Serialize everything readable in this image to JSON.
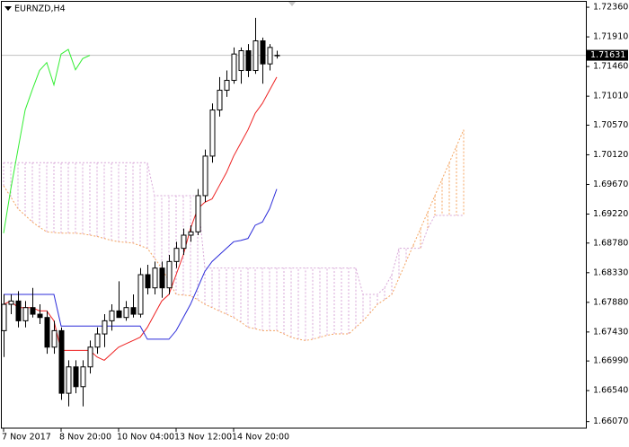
{
  "chart_data": {
    "type": "candlestick",
    "title": "EURNZD,H4",
    "categories": [
      "7 Nov 2017",
      null,
      null,
      null,
      null,
      null,
      null,
      null,
      "8 Nov 20:00",
      null,
      null,
      null,
      null,
      null,
      null,
      null,
      "10 Nov 04:00",
      null,
      null,
      null,
      null,
      null,
      null,
      null,
      "13 Nov 12:00",
      null,
      null,
      null,
      null,
      null,
      null,
      null,
      "14 Nov 20:00",
      null,
      null,
      null,
      null,
      null,
      null,
      null,
      null,
      null,
      null,
      null,
      null,
      null,
      null,
      null,
      null,
      null,
      null,
      null,
      null,
      null,
      null,
      null,
      null,
      null,
      null,
      null,
      null,
      null,
      null,
      null,
      null
    ],
    "open": [
      1.6745,
      1.6785,
      1.679,
      1.676,
      1.678,
      1.677,
      1.6765,
      1.672,
      1.6745,
      1.665,
      1.669,
      1.666,
      1.669,
      1.672,
      1.674,
      1.676,
      1.6775,
      1.6765,
      1.678,
      1.677,
      1.683,
      1.681,
      1.684,
      1.681,
      1.685,
      1.687,
      1.689,
      1.6895,
      1.695,
      1.701,
      1.708,
      1.711,
      1.7125,
      1.714,
      1.717,
      1.714,
      1.7185,
      1.715,
      1.7163,
      null,
      null,
      null,
      null,
      null,
      null,
      null,
      null,
      null,
      null,
      null,
      null,
      null,
      null,
      null,
      null,
      null,
      null,
      null,
      null,
      null,
      null,
      null,
      null,
      null,
      null
    ],
    "high": [
      1.68,
      1.68,
      1.6805,
      1.679,
      1.681,
      1.6785,
      1.6775,
      1.676,
      1.675,
      1.67,
      1.67,
      1.67,
      1.673,
      1.675,
      1.677,
      1.6785,
      1.682,
      1.679,
      1.68,
      1.684,
      1.6845,
      1.685,
      1.685,
      1.686,
      1.688,
      1.69,
      1.6905,
      1.696,
      1.702,
      1.709,
      1.713,
      1.714,
      1.7175,
      1.7175,
      1.718,
      1.722,
      1.719,
      1.718,
      1.717,
      null,
      null,
      null,
      null,
      null,
      null,
      null,
      null,
      null,
      null,
      null,
      null,
      null,
      null,
      null,
      null,
      null,
      null,
      null,
      null,
      null,
      null,
      null,
      null,
      null,
      null
    ],
    "low": [
      1.6705,
      1.677,
      1.675,
      1.675,
      1.6765,
      1.6755,
      1.671,
      1.671,
      1.664,
      1.663,
      1.665,
      1.663,
      1.668,
      1.671,
      1.672,
      1.6745,
      1.6765,
      1.676,
      1.6765,
      1.6765,
      1.68,
      1.68,
      1.6795,
      1.68,
      1.684,
      1.686,
      1.688,
      1.689,
      1.694,
      1.7,
      1.707,
      1.71,
      1.712,
      1.712,
      1.713,
      1.7135,
      1.712,
      1.714,
      1.7158,
      null,
      null,
      null,
      null,
      null,
      null,
      null,
      null,
      null,
      null,
      null,
      null,
      null,
      null,
      null,
      null,
      null,
      null,
      null,
      null,
      null,
      null,
      null,
      null,
      null,
      null
    ],
    "close": [
      1.6785,
      1.679,
      1.676,
      1.678,
      1.677,
      1.6765,
      1.672,
      1.6745,
      1.665,
      1.669,
      1.666,
      1.669,
      1.672,
      1.674,
      1.676,
      1.6775,
      1.6765,
      1.678,
      1.677,
      1.683,
      1.681,
      1.684,
      1.681,
      1.685,
      1.687,
      1.689,
      1.6895,
      1.695,
      1.701,
      1.708,
      1.711,
      1.7125,
      1.7165,
      1.717,
      1.714,
      1.7185,
      1.715,
      1.7175,
      1.7163,
      null,
      null,
      null,
      null,
      null,
      null,
      null,
      null,
      null,
      null,
      null,
      null,
      null,
      null,
      null,
      null,
      null,
      null,
      null,
      null,
      null,
      null,
      null,
      null,
      null,
      null
    ],
    "lines": [
      {
        "color": "#ee2222",
        "values": [
          1.6785,
          1.679,
          1.678,
          1.678,
          1.678,
          1.6775,
          1.6775,
          1.676,
          1.6715,
          1.6715,
          1.6715,
          1.6715,
          1.6715,
          1.6705,
          1.67,
          1.671,
          1.672,
          1.6725,
          1.673,
          1.6735,
          1.675,
          1.677,
          1.679,
          1.68,
          1.683,
          1.686,
          1.69,
          1.693,
          1.694,
          1.6945,
          1.6965,
          1.6985,
          1.701,
          1.703,
          1.705,
          1.7075,
          1.709,
          1.711,
          1.713,
          null,
          null,
          null,
          null,
          null,
          null,
          null,
          null,
          null,
          null,
          null,
          null,
          null,
          null,
          null,
          null,
          null,
          null,
          null,
          null,
          null,
          null,
          null,
          null,
          null,
          null
        ]
      },
      {
        "color": "#2b2bd9",
        "values": [
          1.68,
          1.68,
          1.68,
          1.68,
          1.68,
          1.68,
          1.68,
          1.68,
          1.6752,
          1.6752,
          1.6752,
          1.6752,
          1.6752,
          1.6752,
          1.6752,
          1.6752,
          1.6752,
          1.6752,
          1.6752,
          1.6752,
          1.6732,
          1.6732,
          1.6732,
          1.6732,
          1.6745,
          1.6765,
          1.6785,
          1.681,
          1.6835,
          1.685,
          1.686,
          1.687,
          1.688,
          1.6882,
          1.6885,
          1.6905,
          1.691,
          1.693,
          1.696,
          null,
          null,
          null,
          null,
          null,
          null,
          null,
          null,
          null,
          null,
          null,
          null,
          null,
          null,
          null,
          null,
          null,
          null,
          null,
          null,
          null,
          null,
          null,
          null,
          null,
          null
        ]
      },
      {
        "color": "#33ee33",
        "values": [
          1.6893,
          1.696,
          1.702,
          1.708,
          1.7111,
          1.714,
          1.7152,
          1.7118,
          1.7165,
          1.7172,
          1.7141,
          1.7158,
          1.7163,
          null,
          null,
          null,
          null,
          null,
          null,
          null,
          null,
          null,
          null,
          null,
          null,
          null,
          null,
          null,
          null,
          null,
          null,
          null,
          null,
          null,
          null,
          null,
          null,
          null,
          null,
          null,
          null,
          null,
          null,
          null,
          null,
          null,
          null,
          null,
          null,
          null,
          null,
          null,
          null,
          null,
          null,
          null,
          null,
          null,
          null,
          null,
          null,
          null,
          null,
          null,
          null
        ]
      }
    ],
    "cloud_a": {
      "color": "#f4a460",
      "values": [
        1.6965,
        1.6948,
        1.693,
        1.692,
        1.691,
        1.6902,
        1.6895,
        1.6894,
        1.6893,
        1.6893,
        1.6893,
        1.6892,
        1.689,
        1.6888,
        1.6885,
        1.6882,
        1.688,
        1.6879,
        1.6878,
        1.6874,
        1.687,
        1.6855,
        1.684,
        1.682,
        1.68,
        1.6799,
        1.6798,
        1.6792,
        1.6785,
        1.678,
        1.6775,
        1.677,
        1.6765,
        1.6758,
        1.675,
        1.6748,
        1.6745,
        1.6745,
        1.6745,
        1.674,
        1.6735,
        1.6732,
        1.673,
        1.6732,
        1.6735,
        1.6738,
        1.674,
        1.674,
        1.674,
        1.675,
        1.676,
        1.6772,
        1.6785,
        1.6792,
        1.68,
        1.6825,
        1.685,
        1.6875,
        1.69,
        1.6925,
        1.695,
        1.6975,
        1.7,
        1.7025,
        1.705
      ]
    },
    "cloud_b": {
      "color": "#d8a8d8",
      "values": [
        1.7,
        1.7,
        1.7,
        1.7,
        1.7,
        1.7,
        1.7,
        1.7,
        1.7,
        1.7,
        1.7,
        1.7,
        1.7,
        1.7,
        1.7,
        1.7,
        1.7,
        1.7,
        1.7,
        1.7,
        1.7,
        1.695,
        1.695,
        1.695,
        1.695,
        1.695,
        1.695,
        1.695,
        1.684,
        1.684,
        1.684,
        1.684,
        1.684,
        1.684,
        1.684,
        1.684,
        1.684,
        1.684,
        1.684,
        1.684,
        1.684,
        1.684,
        1.684,
        1.684,
        1.684,
        1.684,
        1.684,
        1.684,
        1.684,
        1.684,
        1.68,
        1.68,
        1.68,
        1.681,
        1.683,
        1.687,
        1.687,
        1.687,
        1.687,
        1.69,
        1.692,
        1.692,
        1.692,
        1.692,
        1.692
      ]
    },
    "current_price": {
      "value": 1.71631,
      "label": "1.71631"
    },
    "ylim": [
      1.6597,
      1.7247
    ],
    "yticks": [
      {
        "value": 1.7236,
        "label": "1.72360"
      },
      {
        "value": 1.7191,
        "label": "1.71910"
      },
      {
        "value": 1.7146,
        "label": "1.71460"
      },
      {
        "value": 1.7101,
        "label": "1.71010"
      },
      {
        "value": 1.7057,
        "label": "1.70570"
      },
      {
        "value": 1.7012,
        "label": "1.70120"
      },
      {
        "value": 1.6967,
        "label": "1.69670"
      },
      {
        "value": 1.6922,
        "label": "1.69220"
      },
      {
        "value": 1.6878,
        "label": "1.68780"
      },
      {
        "value": 1.6833,
        "label": "1.68330"
      },
      {
        "value": 1.6788,
        "label": "1.67880"
      },
      {
        "value": 1.6743,
        "label": "1.67430"
      },
      {
        "value": 1.6699,
        "label": "1.66990"
      },
      {
        "value": 1.6654,
        "label": "1.66540"
      },
      {
        "value": 1.6607,
        "label": "1.66070"
      }
    ],
    "grid": false
  }
}
